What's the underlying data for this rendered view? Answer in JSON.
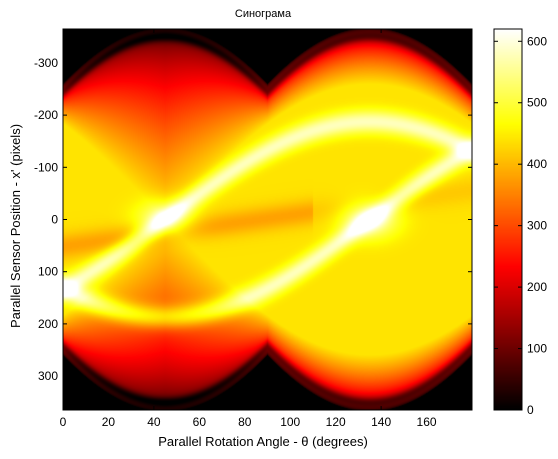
{
  "chart_data": {
    "type": "heatmap",
    "title": "Синограма",
    "xlabel": "Parallel Rotation Angle - θ (degrees)",
    "ylabel": "Parallel Sensor Position - x' (pixels)",
    "xlim": [
      0,
      180
    ],
    "ylim": [
      -365,
      365
    ],
    "y_reversed": true,
    "x_ticks": [
      "0",
      "20",
      "40",
      "60",
      "80",
      "100",
      "120",
      "140",
      "160"
    ],
    "y_ticks": [
      "-300",
      "-200",
      "-100",
      "0",
      "100",
      "200",
      "300"
    ],
    "colormap": "hot",
    "colorbar": {
      "range": [
        0,
        620
      ],
      "ticks": [
        "0",
        "100",
        "200",
        "300",
        "400",
        "500",
        "600"
      ]
    },
    "features": {
      "support_edge_amplitude": 260,
      "peak_bright_points": [
        {
          "theta": 45,
          "x": 0,
          "value": 600
        },
        {
          "theta": 135,
          "x": 0,
          "value": 610
        }
      ],
      "crossing_points_dark": [
        {
          "theta": 90,
          "x": -260
        },
        {
          "theta": 90,
          "x": 260
        }
      ]
    }
  }
}
